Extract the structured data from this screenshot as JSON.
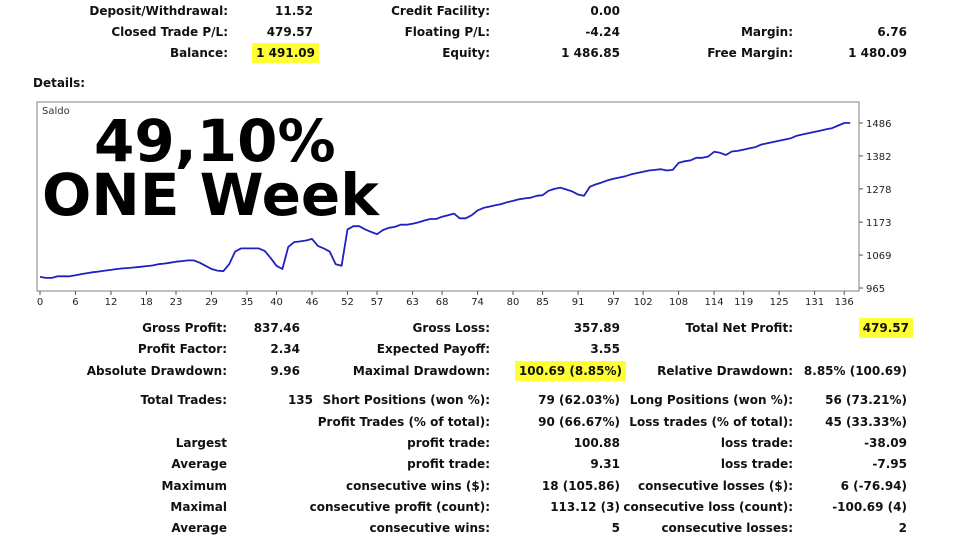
{
  "summary": {
    "deposit_label": "Deposit/Withdrawal:",
    "deposit_value": "11.52",
    "closed_label": "Closed Trade P/L:",
    "closed_value": "479.57",
    "balance_label": "Balance:",
    "balance_value": "1 491.09",
    "credit_label": "Credit Facility:",
    "credit_value": "0.00",
    "floating_label": "Floating P/L:",
    "floating_value": "-4.24",
    "equity_label": "Equity:",
    "equity_value": "1 486.85",
    "margin_label": "Margin:",
    "margin_value": "6.76",
    "free_margin_label": "Free Margin:",
    "free_margin_value": "1 480.09"
  },
  "details_label": "Details:",
  "headline": {
    "line1": "49,10%",
    "line2": "ONE Week"
  },
  "chart_data": {
    "type": "line",
    "title": "Saldo",
    "x_ticks": [
      0,
      6,
      12,
      18,
      23,
      29,
      35,
      40,
      46,
      52,
      57,
      63,
      68,
      74,
      80,
      85,
      91,
      97,
      102,
      108,
      114,
      119,
      125,
      131,
      136
    ],
    "y_ticks": [
      "1486",
      "1382",
      "1278",
      "1173",
      "1069",
      "965"
    ],
    "xlim": [
      0,
      138
    ],
    "ylim": [
      965,
      1486
    ],
    "series": [
      {
        "name": "Saldo",
        "color": "#2020c0",
        "x": [
          0,
          1,
          2,
          3,
          4,
          5,
          6,
          7,
          8,
          9,
          10,
          11,
          12,
          13,
          14,
          15,
          16,
          17,
          18,
          19,
          20,
          21,
          22,
          23,
          24,
          25,
          26,
          27,
          28,
          29,
          30,
          31,
          32,
          33,
          34,
          35,
          36,
          37,
          38,
          39,
          40,
          41,
          42,
          43,
          44,
          45,
          46,
          47,
          48,
          49,
          50,
          51,
          52,
          53,
          54,
          55,
          56,
          57,
          58,
          59,
          60,
          61,
          62,
          63,
          64,
          65,
          66,
          67,
          68,
          69,
          70,
          71,
          72,
          73,
          74,
          75,
          76,
          77,
          78,
          79,
          80,
          81,
          82,
          83,
          84,
          85,
          86,
          87,
          88,
          89,
          90,
          91,
          92,
          93,
          94,
          95,
          96,
          97,
          98,
          99,
          100,
          101,
          102,
          103,
          104,
          105,
          106,
          107,
          108,
          109,
          110,
          111,
          112,
          113,
          114,
          115,
          116,
          117,
          118,
          119,
          120,
          121,
          122,
          123,
          124,
          125,
          126,
          127,
          128,
          129,
          130,
          131,
          132,
          133,
          134,
          135,
          136,
          137
        ],
        "y": [
          1000,
          997,
          997,
          1002,
          1002,
          1002,
          1005,
          1009,
          1012,
          1015,
          1017,
          1020,
          1022,
          1025,
          1027,
          1028,
          1030,
          1032,
          1034,
          1036,
          1040,
          1042,
          1045,
          1048,
          1050,
          1052,
          1052,
          1045,
          1035,
          1025,
          1020,
          1018,
          1040,
          1080,
          1090,
          1090,
          1090,
          1090,
          1082,
          1060,
          1035,
          1025,
          1095,
          1110,
          1112,
          1115,
          1120,
          1098,
          1090,
          1080,
          1040,
          1035,
          1150,
          1160,
          1160,
          1150,
          1142,
          1135,
          1148,
          1155,
          1158,
          1165,
          1165,
          1168,
          1172,
          1178,
          1183,
          1183,
          1190,
          1195,
          1200,
          1185,
          1185,
          1195,
          1210,
          1218,
          1222,
          1226,
          1230,
          1236,
          1240,
          1245,
          1248,
          1250,
          1256,
          1258,
          1272,
          1278,
          1282,
          1276,
          1270,
          1260,
          1256,
          1285,
          1292,
          1298,
          1305,
          1310,
          1314,
          1318,
          1324,
          1328,
          1332,
          1336,
          1338,
          1340,
          1336,
          1338,
          1360,
          1365,
          1368,
          1376,
          1376,
          1380,
          1395,
          1392,
          1385,
          1396,
          1398,
          1402,
          1406,
          1410,
          1418,
          1422,
          1426,
          1430,
          1434,
          1438,
          1446,
          1450,
          1454,
          1458,
          1462,
          1466,
          1470,
          1478,
          1486,
          1486
        ]
      }
    ]
  },
  "stats": {
    "gross_profit_label": "Gross Profit:",
    "gross_profit_value": "837.46",
    "profit_factor_label": "Profit Factor:",
    "profit_factor_value": "2.34",
    "abs_dd_label": "Absolute Drawdown:",
    "abs_dd_value": "9.96",
    "total_trades_label": "Total Trades:",
    "total_trades_value": "135",
    "largest_label": "Largest",
    "average_label": "Average",
    "maximum_label": "Maximum",
    "maximal_label": "Maximal",
    "average2_label": "Average",
    "gross_loss_label": "Gross Loss:",
    "gross_loss_value": "357.89",
    "expected_payoff_label": "Expected Payoff:",
    "expected_payoff_value": "3.55",
    "max_dd_label": "Maximal Drawdown:",
    "max_dd_value": "100.69 (8.85%)",
    "short_label": "Short Positions (won %):",
    "short_value": "79 (62.03%)",
    "profit_trades_label": "Profit Trades (% of total):",
    "profit_trades_value": "90 (66.67%)",
    "largest_profit_label": "profit trade:",
    "largest_profit_value": "100.88",
    "average_profit_label": "profit trade:",
    "average_profit_value": "9.31",
    "max_cons_wins_label": "consecutive wins ($):",
    "max_cons_wins_value": "18 (105.86)",
    "maximal_cons_profit_label": "consecutive profit (count):",
    "maximal_cons_profit_value": "113.12 (3)",
    "avg_cons_wins_label": "consecutive wins:",
    "avg_cons_wins_value": "5",
    "net_profit_label": "Total Net Profit:",
    "net_profit_value": "479.57",
    "rel_dd_label": "Relative Drawdown:",
    "rel_dd_value": "8.85% (100.69)",
    "long_label": "Long Positions (won %):",
    "long_value": "56 (73.21%)",
    "loss_trades_label": "Loss trades (% of total):",
    "loss_trades_value": "45 (33.33%)",
    "largest_loss_label": "loss trade:",
    "largest_loss_value": "-38.09",
    "average_loss_label": "loss trade:",
    "average_loss_value": "-7.95",
    "max_cons_losses_label": "consecutive losses ($):",
    "max_cons_losses_value": "6 (-76.94)",
    "maximal_cons_loss_label": "consecutive loss (count):",
    "maximal_cons_loss_value": "-100.69 (4)",
    "avg_cons_losses_label": "consecutive losses:",
    "avg_cons_losses_value": "2"
  },
  "colors": {
    "highlight": "#ffff33",
    "series": "#2020c0",
    "grid": "#808080"
  }
}
